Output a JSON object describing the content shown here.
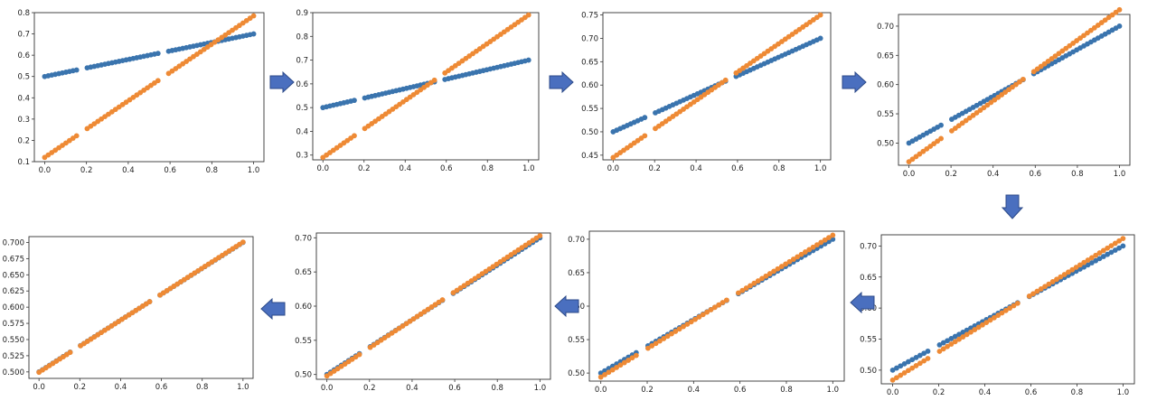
{
  "colors": {
    "series_blue": "#3a74ae",
    "series_orange": "#ee8a35",
    "arrow_fill": "#4a6fbf",
    "arrow_stroke": "#2c4a88"
  },
  "arrows": [
    {
      "icon": "arrow-right-icon"
    },
    {
      "icon": "arrow-right-icon"
    },
    {
      "icon": "arrow-right-icon"
    },
    {
      "icon": "arrow-down-icon"
    },
    {
      "icon": "arrow-left-icon"
    },
    {
      "icon": "arrow-left-icon"
    },
    {
      "icon": "arrow-left-icon"
    }
  ],
  "chart_data": [
    {
      "type": "scatter",
      "step": 1,
      "xlim": [
        0,
        1
      ],
      "ylim": [
        0.1,
        0.8
      ],
      "xticks": [
        0.0,
        0.2,
        0.4,
        0.6,
        0.8,
        1.0
      ],
      "yticks": [
        0.1,
        0.2,
        0.3,
        0.4,
        0.5,
        0.6,
        0.7,
        0.8
      ],
      "xticklabels": [
        "0.0",
        "0.2",
        "0.4",
        "0.6",
        "0.8",
        "1.0"
      ],
      "yticklabels": [
        "0.1",
        "0.2",
        "0.3",
        "0.4",
        "0.5",
        "0.6",
        "0.7",
        "0.8"
      ],
      "series": [
        {
          "color": "blue",
          "line": {
            "slope": 0.2,
            "intercept": 0.5
          }
        },
        {
          "color": "orange",
          "line": {
            "slope": 0.665,
            "intercept": 0.12
          }
        }
      ]
    },
    {
      "type": "scatter",
      "step": 2,
      "xlim": [
        0,
        1
      ],
      "ylim": [
        0.28,
        0.9
      ],
      "xticks": [
        0.0,
        0.2,
        0.4,
        0.6,
        0.8,
        1.0
      ],
      "yticks": [
        0.3,
        0.4,
        0.5,
        0.6,
        0.7,
        0.8,
        0.9
      ],
      "xticklabels": [
        "0.0",
        "0.2",
        "0.4",
        "0.6",
        "0.8",
        "1.0"
      ],
      "yticklabels": [
        "0.3",
        "0.4",
        "0.5",
        "0.6",
        "0.7",
        "0.8",
        "0.9"
      ],
      "series": [
        {
          "color": "blue",
          "line": {
            "slope": 0.2,
            "intercept": 0.5
          }
        },
        {
          "color": "orange",
          "line": {
            "slope": 0.6,
            "intercept": 0.29
          }
        }
      ]
    },
    {
      "type": "scatter",
      "step": 3,
      "xlim": [
        0,
        1
      ],
      "ylim": [
        0.44,
        0.755
      ],
      "xticks": [
        0.0,
        0.2,
        0.4,
        0.6,
        0.8,
        1.0
      ],
      "yticks": [
        0.45,
        0.5,
        0.55,
        0.6,
        0.65,
        0.7,
        0.75
      ],
      "xticklabels": [
        "0.0",
        "0.2",
        "0.4",
        "0.6",
        "0.8",
        "1.0"
      ],
      "yticklabels": [
        "0.45",
        "0.50",
        "0.55",
        "0.60",
        "0.65",
        "0.70",
        "0.75"
      ],
      "series": [
        {
          "color": "blue",
          "line": {
            "slope": 0.2,
            "intercept": 0.5
          }
        },
        {
          "color": "orange",
          "line": {
            "slope": 0.305,
            "intercept": 0.445
          }
        }
      ]
    },
    {
      "type": "scatter",
      "step": 4,
      "xlim": [
        0,
        1
      ],
      "ylim": [
        0.462,
        0.72
      ],
      "xticks": [
        0.0,
        0.2,
        0.4,
        0.6,
        0.8,
        1.0
      ],
      "yticks": [
        0.5,
        0.55,
        0.6,
        0.65,
        0.7
      ],
      "xticklabels": [
        "0.0",
        "0.2",
        "0.4",
        "0.6",
        "0.8",
        "1.0"
      ],
      "yticklabels": [
        "0.50",
        "0.55",
        "0.60",
        "0.65",
        "0.70"
      ],
      "series": [
        {
          "color": "blue",
          "line": {
            "slope": 0.2,
            "intercept": 0.5
          }
        },
        {
          "color": "orange",
          "line": {
            "slope": 0.26,
            "intercept": 0.468
          }
        }
      ]
    },
    {
      "type": "scatter",
      "step": 5,
      "xlim": [
        0,
        1
      ],
      "ylim": [
        0.478,
        0.718
      ],
      "xticks": [
        0.0,
        0.2,
        0.4,
        0.6,
        0.8,
        1.0
      ],
      "yticks": [
        0.5,
        0.55,
        0.6,
        0.65,
        0.7
      ],
      "xticklabels": [
        "0.0",
        "0.2",
        "0.4",
        "0.6",
        "0.8",
        "1.0"
      ],
      "yticklabels": [
        "0.50",
        "0.55",
        "0.60",
        "0.65",
        "0.70"
      ],
      "series": [
        {
          "color": "blue",
          "line": {
            "slope": 0.2,
            "intercept": 0.5
          }
        },
        {
          "color": "orange",
          "line": {
            "slope": 0.228,
            "intercept": 0.484
          }
        }
      ]
    },
    {
      "type": "scatter",
      "step": 6,
      "xlim": [
        0,
        1
      ],
      "ylim": [
        0.488,
        0.712
      ],
      "xticks": [
        0.0,
        0.2,
        0.4,
        0.6,
        0.8,
        1.0
      ],
      "yticks": [
        0.5,
        0.55,
        0.6,
        0.65,
        0.7
      ],
      "xticklabels": [
        "0.0",
        "0.2",
        "0.4",
        "0.6",
        "0.8",
        "1.0"
      ],
      "yticklabels": [
        "0.50",
        "0.55",
        "0.60",
        "0.65",
        "0.70"
      ],
      "series": [
        {
          "color": "blue",
          "line": {
            "slope": 0.2,
            "intercept": 0.5
          }
        },
        {
          "color": "orange",
          "line": {
            "slope": 0.212,
            "intercept": 0.494
          }
        }
      ]
    },
    {
      "type": "scatter",
      "step": 7,
      "xlim": [
        0,
        1
      ],
      "ylim": [
        0.493,
        0.707
      ],
      "xticks": [
        0.0,
        0.2,
        0.4,
        0.6,
        0.8,
        1.0
      ],
      "yticks": [
        0.5,
        0.55,
        0.6,
        0.65,
        0.7
      ],
      "xticklabels": [
        "0.0",
        "0.2",
        "0.4",
        "0.6",
        "0.8",
        "1.0"
      ],
      "yticklabels": [
        "0.50",
        "0.55",
        "0.60",
        "0.65",
        "0.70"
      ],
      "series": [
        {
          "color": "blue",
          "line": {
            "slope": 0.2,
            "intercept": 0.5
          }
        },
        {
          "color": "orange",
          "line": {
            "slope": 0.205,
            "intercept": 0.498
          }
        }
      ]
    },
    {
      "type": "scatter",
      "step": 8,
      "xlim": [
        0,
        1
      ],
      "ylim": [
        0.49,
        0.709
      ],
      "xticks": [
        0.0,
        0.2,
        0.4,
        0.6,
        0.8,
        1.0
      ],
      "yticks": [
        0.5,
        0.525,
        0.55,
        0.575,
        0.6,
        0.625,
        0.65,
        0.675,
        0.7
      ],
      "xticklabels": [
        "0.0",
        "0.2",
        "0.4",
        "0.6",
        "0.8",
        "1.0"
      ],
      "yticklabels": [
        "0.500",
        "0.525",
        "0.550",
        "0.575",
        "0.600",
        "0.625",
        "0.650",
        "0.675",
        "0.700"
      ],
      "series": [
        {
          "color": "blue",
          "line": {
            "slope": 0.2,
            "intercept": 0.5
          }
        },
        {
          "color": "orange",
          "line": {
            "slope": 0.201,
            "intercept": 0.4995
          }
        }
      ]
    }
  ]
}
